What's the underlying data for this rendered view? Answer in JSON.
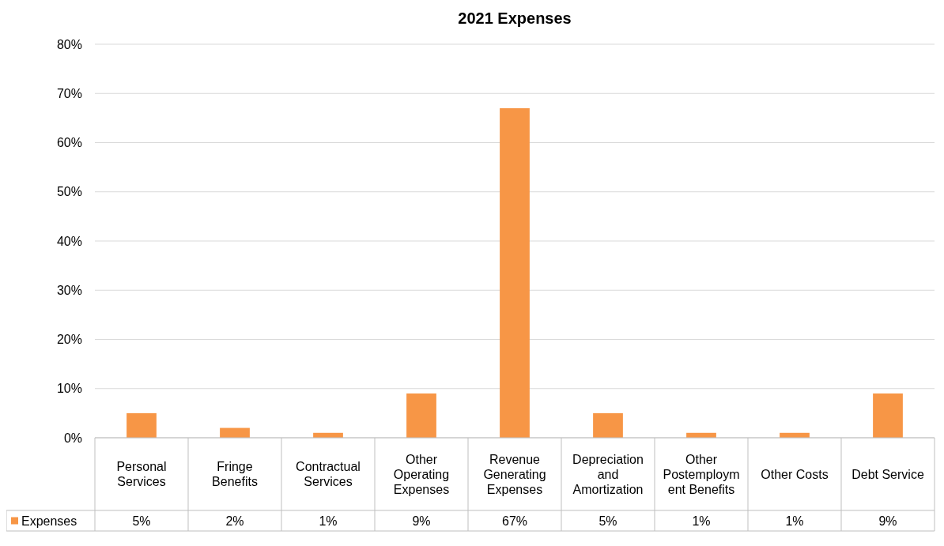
{
  "chart_data": {
    "type": "bar",
    "title": "2021 Expenses",
    "categories": [
      "Personal Services",
      "Fringe Benefits",
      "Contractual Services",
      "Other Operating Expenses",
      "Revenue Generating Expenses",
      "Depreciation and Amortization",
      "Other Postemployment Benefits",
      "Other Costs",
      "Debt Service"
    ],
    "series": [
      {
        "name": "Expenses",
        "color": "#f79646",
        "values": [
          5,
          2,
          1,
          9,
          67,
          5,
          1,
          1,
          9
        ],
        "value_labels": [
          "5%",
          "2%",
          "1%",
          "9%",
          "67%",
          "5%",
          "1%",
          "1%",
          "9%"
        ]
      }
    ],
    "ylim": [
      0,
      80
    ],
    "yticks": [
      {
        "value": 0,
        "label": "0%"
      },
      {
        "value": 10,
        "label": "10%"
      },
      {
        "value": 20,
        "label": "20%"
      },
      {
        "value": 30,
        "label": "30%"
      },
      {
        "value": 40,
        "label": "40%"
      },
      {
        "value": 50,
        "label": "50%"
      },
      {
        "value": 60,
        "label": "60%"
      },
      {
        "value": 70,
        "label": "70%"
      },
      {
        "value": 80,
        "label": "80%"
      }
    ],
    "grid": "y",
    "legend": "bottom"
  }
}
